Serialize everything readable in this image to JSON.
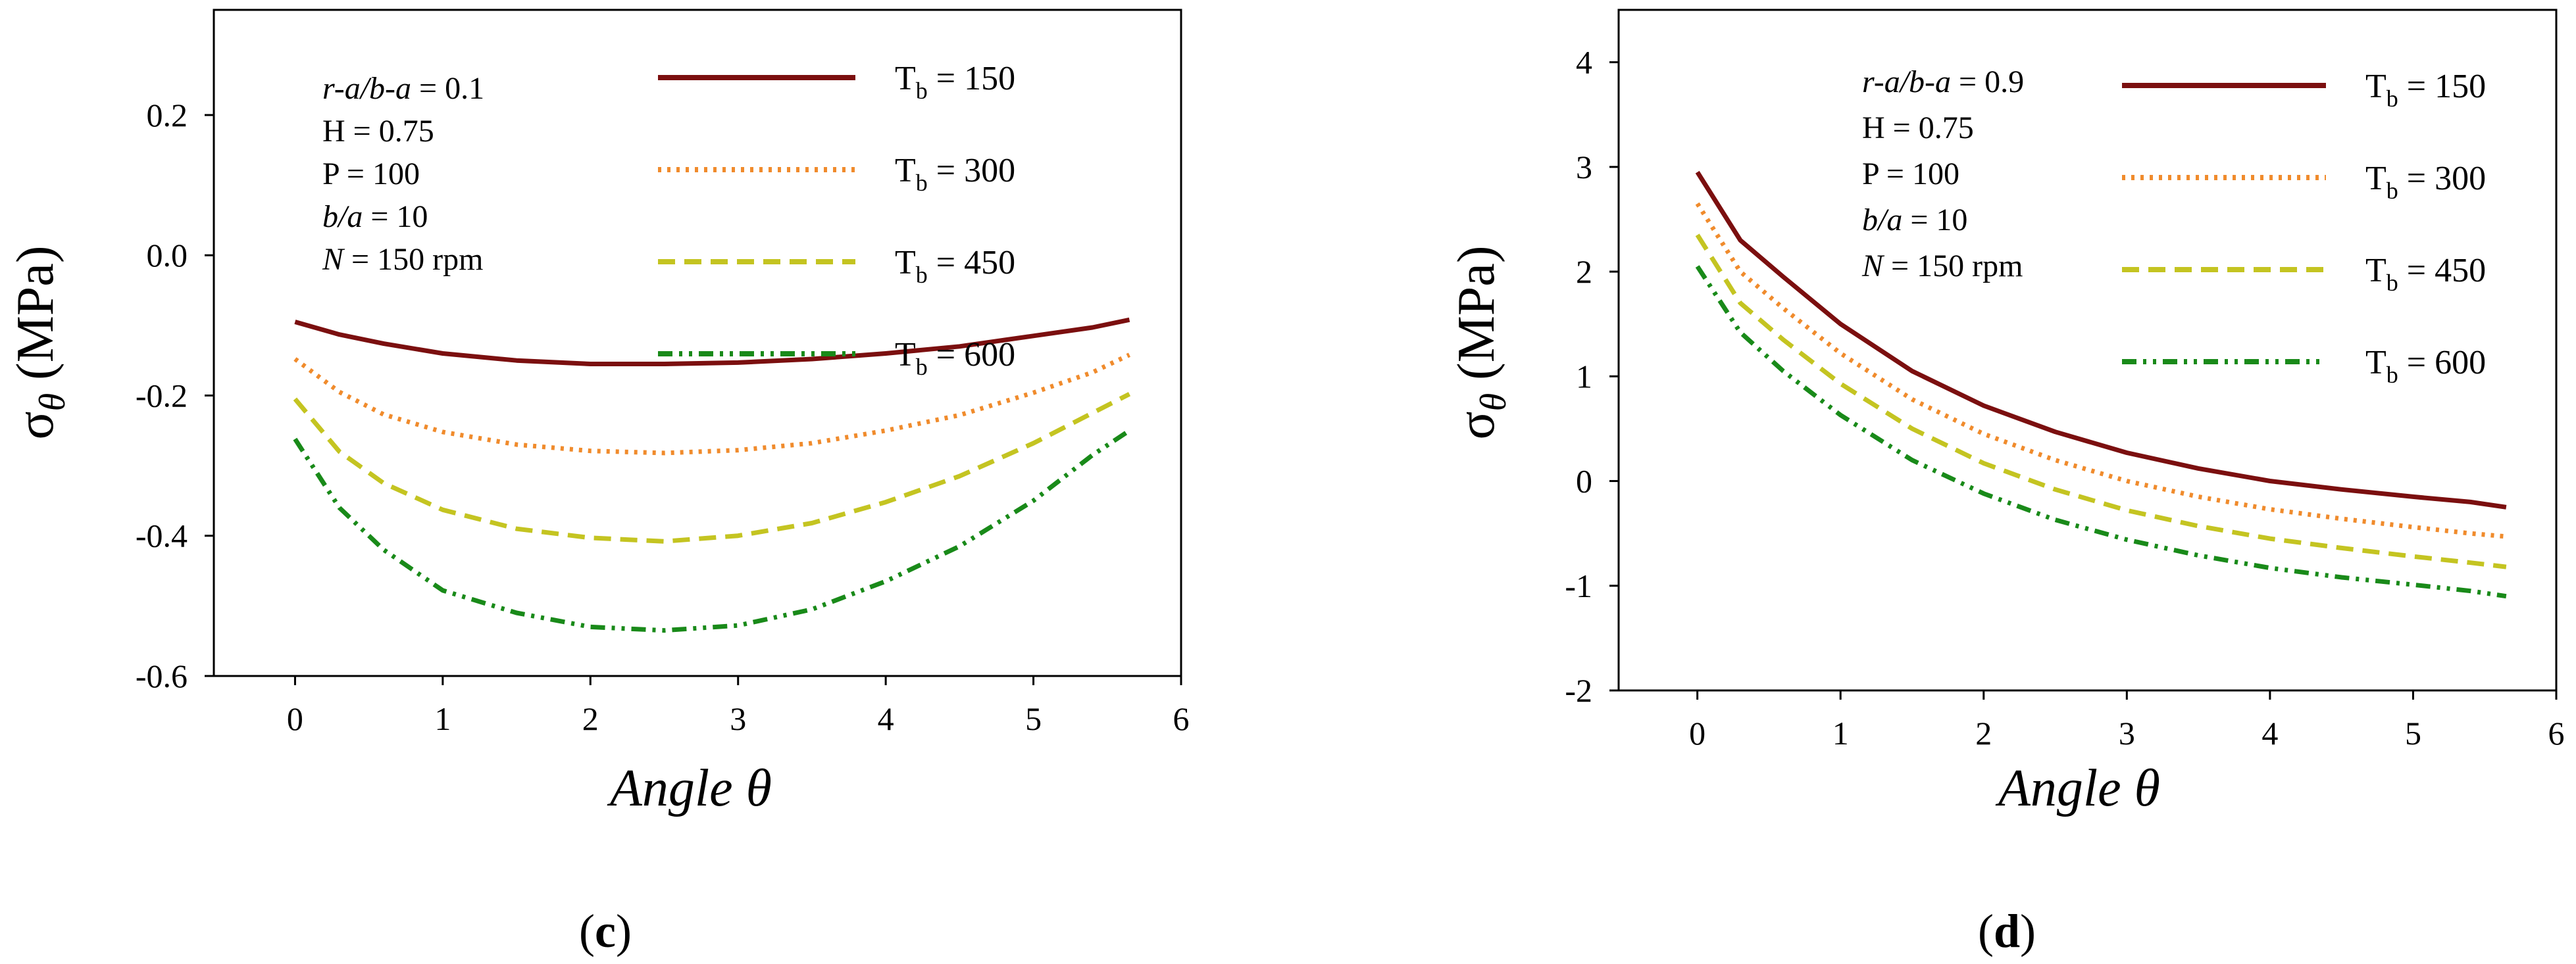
{
  "chart_data": [
    {
      "type": "line",
      "panel_label": "c",
      "xlabel": "Angle θ",
      "ylabel": "σθ (MPa)",
      "xlim": [
        -0.55,
        6
      ],
      "ylim": [
        -0.6,
        0.35
      ],
      "xticks": [
        "0",
        "1",
        "2",
        "3",
        "4",
        "5",
        "6"
      ],
      "yticks": [
        "0.2",
        "0.0",
        "-0.2",
        "-0.4",
        "-0.6"
      ],
      "annotations": [
        {
          "lines": [
            {
              "t": "r-a/b-a",
              "i": true
            },
            {
              "t": " = 0.1",
              "i": false
            }
          ]
        },
        {
          "lines": [
            {
              "t": "H = 0.75",
              "i": false
            }
          ]
        },
        {
          "lines": [
            {
              "t": "P = 100",
              "i": false
            }
          ]
        },
        {
          "lines": [
            {
              "t": "b/a",
              "i": true
            },
            {
              "t": " = 10",
              "i": false
            }
          ]
        },
        {
          "lines": [
            {
              "t": "N",
              "i": true
            },
            {
              "t": " = 150 rpm",
              "i": false
            }
          ]
        }
      ],
      "series": [
        {
          "name": "Tb = 150",
          "label_main": "T",
          "label_sub": "b",
          "label_val": " = 150",
          "color": "#7b0f0f",
          "style": "solid",
          "x": [
            0,
            0.3,
            0.6,
            1.0,
            1.5,
            2.0,
            2.5,
            3.0,
            3.5,
            4.0,
            4.5,
            5.0,
            5.4,
            5.65
          ],
          "y": [
            -0.095,
            -0.113,
            -0.126,
            -0.14,
            -0.15,
            -0.155,
            -0.155,
            -0.153,
            -0.148,
            -0.14,
            -0.13,
            -0.115,
            -0.103,
            -0.092
          ]
        },
        {
          "name": "Tb = 300",
          "label_main": "T",
          "label_sub": "b",
          "label_val": " = 300",
          "color": "#f08b2c",
          "style": "dotted",
          "x": [
            0,
            0.3,
            0.6,
            1.0,
            1.5,
            2.0,
            2.5,
            3.0,
            3.5,
            4.0,
            4.5,
            5.0,
            5.4,
            5.65
          ],
          "y": [
            -0.148,
            -0.195,
            -0.227,
            -0.252,
            -0.27,
            -0.279,
            -0.282,
            -0.278,
            -0.268,
            -0.25,
            -0.228,
            -0.196,
            -0.167,
            -0.142
          ]
        },
        {
          "name": "Tb = 450",
          "label_main": "T",
          "label_sub": "b",
          "label_val": " = 450",
          "color": "#c4c421",
          "style": "dashed",
          "x": [
            0,
            0.3,
            0.6,
            1.0,
            1.5,
            2.0,
            2.5,
            3.0,
            3.5,
            4.0,
            4.5,
            5.0,
            5.4,
            5.65
          ],
          "y": [
            -0.205,
            -0.28,
            -0.325,
            -0.363,
            -0.39,
            -0.403,
            -0.408,
            -0.4,
            -0.382,
            -0.352,
            -0.315,
            -0.268,
            -0.225,
            -0.198
          ]
        },
        {
          "name": "Tb = 600",
          "label_main": "T",
          "label_sub": "b",
          "label_val": " = 600",
          "color": "#198a19",
          "style": "dashdotdot",
          "x": [
            0,
            0.3,
            0.6,
            1.0,
            1.5,
            2.0,
            2.5,
            3.0,
            3.5,
            4.0,
            4.5,
            5.0,
            5.4,
            5.65
          ],
          "y": [
            -0.262,
            -0.36,
            -0.42,
            -0.478,
            -0.51,
            -0.53,
            -0.535,
            -0.528,
            -0.505,
            -0.465,
            -0.415,
            -0.35,
            -0.285,
            -0.25
          ]
        }
      ]
    },
    {
      "type": "line",
      "panel_label": "d",
      "xlabel": "Angle θ",
      "ylabel": "σθ (MPa)",
      "xlim": [
        -0.55,
        6
      ],
      "ylim": [
        -2,
        4.5
      ],
      "xticks": [
        "0",
        "1",
        "2",
        "3",
        "4",
        "5",
        "6"
      ],
      "yticks": [
        "4",
        "3",
        "2",
        "1",
        "0",
        "-1",
        "-2"
      ],
      "annotations": [
        {
          "lines": [
            {
              "t": "r-a/b-a",
              "i": true
            },
            {
              "t": " = 0.9",
              "i": false
            }
          ]
        },
        {
          "lines": [
            {
              "t": "H = 0.75",
              "i": false
            }
          ]
        },
        {
          "lines": [
            {
              "t": "P = 100",
              "i": false
            }
          ]
        },
        {
          "lines": [
            {
              "t": "b/a",
              "i": true
            },
            {
              "t": " = 10",
              "i": false
            }
          ]
        },
        {
          "lines": [
            {
              "t": "N",
              "i": true
            },
            {
              "t": " = 150 rpm",
              "i": false
            }
          ]
        }
      ],
      "series": [
        {
          "name": "Tb = 150",
          "label_main": "T",
          "label_sub": "b",
          "label_val": " = 150",
          "color": "#7b0f0f",
          "style": "solid",
          "x": [
            0,
            0.3,
            0.6,
            1.0,
            1.5,
            2.0,
            2.5,
            3.0,
            3.5,
            4.0,
            4.5,
            5.0,
            5.4,
            5.65
          ],
          "y": [
            2.95,
            2.3,
            1.95,
            1.5,
            1.05,
            0.72,
            0.47,
            0.27,
            0.12,
            0.0,
            -0.08,
            -0.15,
            -0.2,
            -0.25
          ]
        },
        {
          "name": "Tb = 300",
          "label_main": "T",
          "label_sub": "b",
          "label_val": " = 300",
          "color": "#f08b2c",
          "style": "dotted",
          "x": [
            0,
            0.3,
            0.6,
            1.0,
            1.5,
            2.0,
            2.5,
            3.0,
            3.5,
            4.0,
            4.5,
            5.0,
            5.4,
            5.65
          ],
          "y": [
            2.65,
            2.0,
            1.65,
            1.22,
            0.78,
            0.45,
            0.2,
            0.0,
            -0.15,
            -0.27,
            -0.36,
            -0.44,
            -0.5,
            -0.53
          ]
        },
        {
          "name": "Tb = 450",
          "label_main": "T",
          "label_sub": "b",
          "label_val": " = 450",
          "color": "#c4c421",
          "style": "dashed",
          "x": [
            0,
            0.3,
            0.6,
            1.0,
            1.5,
            2.0,
            2.5,
            3.0,
            3.5,
            4.0,
            4.5,
            5.0,
            5.4,
            5.65
          ],
          "y": [
            2.35,
            1.7,
            1.35,
            0.93,
            0.5,
            0.17,
            -0.08,
            -0.28,
            -0.43,
            -0.55,
            -0.64,
            -0.72,
            -0.78,
            -0.82
          ]
        },
        {
          "name": "Tb = 600",
          "label_main": "T",
          "label_sub": "b",
          "label_val": " = 600",
          "color": "#198a19",
          "style": "dashdotdot",
          "x": [
            0,
            0.3,
            0.6,
            1.0,
            1.5,
            2.0,
            2.5,
            3.0,
            3.5,
            4.0,
            4.5,
            5.0,
            5.4,
            5.65
          ],
          "y": [
            2.05,
            1.42,
            1.05,
            0.63,
            0.2,
            -0.12,
            -0.37,
            -0.56,
            -0.71,
            -0.83,
            -0.92,
            -0.99,
            -1.05,
            -1.1
          ]
        }
      ]
    }
  ]
}
